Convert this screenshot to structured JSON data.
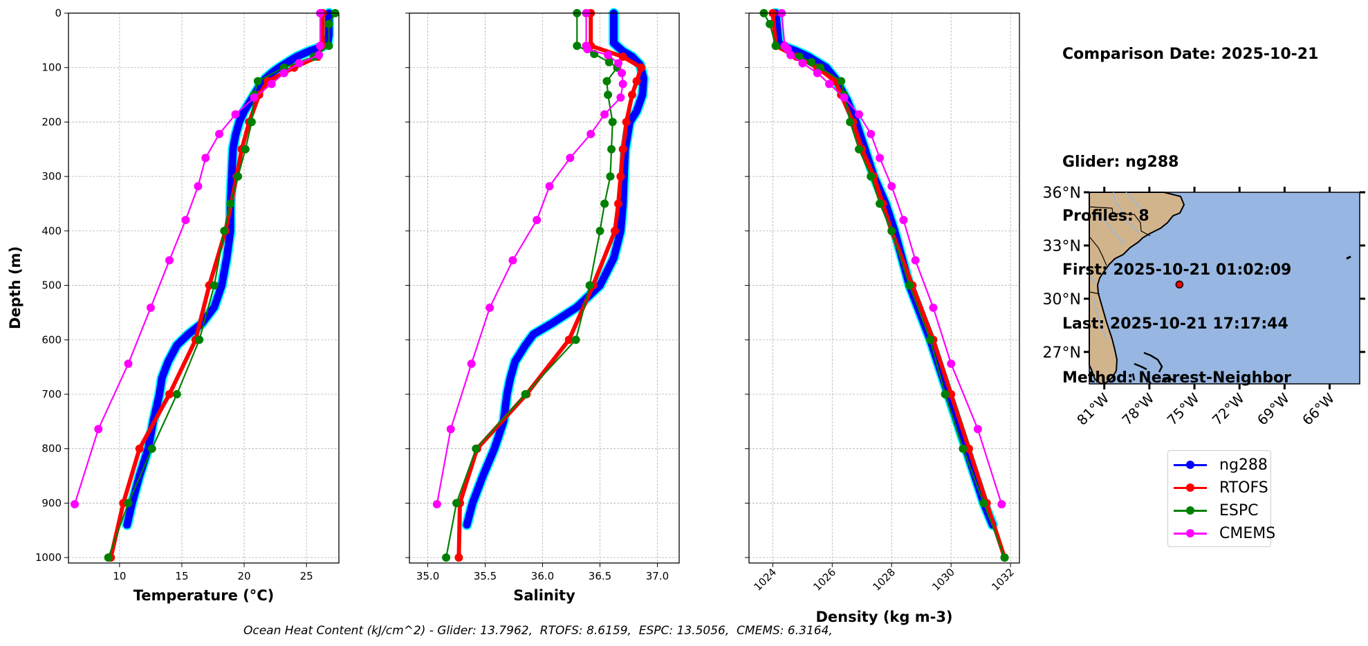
{
  "info": {
    "comparison_date": "Comparison Date: 2025-10-21",
    "glider": "Glider: ng288",
    "profiles": "Profiles: 8",
    "first": "First: 2025-10-21 01:02:09",
    "last": "Last: 2025-10-21 17:17:44",
    "method": "Method: Nearest-Neighbor"
  },
  "footer": "Ocean Heat Content (kJ/cm^2) - Glider: 13.7962,  RTOFS: 8.6159,  ESPC: 13.5056,  CMEMS: 6.3164,",
  "legend": [
    {
      "label": "ng288",
      "color": "#0000ff"
    },
    {
      "label": "RTOFS",
      "color": "#ff0000"
    },
    {
      "label": "ESPC",
      "color": "#008000"
    },
    {
      "label": "CMEMS",
      "color": "#ff00ff"
    }
  ],
  "colors": {
    "glider_halo": "#00ffff",
    "grid": "#b0b0b0",
    "land": "#d2b48c",
    "ocean": "#97b6e1",
    "rivers": "#97b6e1",
    "marker": "#ff0000"
  },
  "chart_data": [
    {
      "type": "line",
      "title": "",
      "xlabel": "Temperature (°C)",
      "ylabel": "Depth (m)",
      "xlim": [
        5.9,
        27.6
      ],
      "ylim": [
        1010,
        0
      ],
      "xticks": [
        10,
        15,
        20,
        25
      ],
      "yticks": [
        0,
        100,
        200,
        300,
        400,
        500,
        600,
        700,
        800,
        900,
        1000
      ],
      "grid": true,
      "series": [
        {
          "name": "ng288",
          "depth": [
            0,
            20,
            40,
            55,
            62,
            70,
            80,
            90,
            100,
            110,
            120,
            135,
            150,
            165,
            180,
            200,
            225,
            250,
            300,
            350,
            400,
            450,
            500,
            540,
            570,
            590,
            610,
            640,
            670,
            700,
            750,
            800,
            850,
            900,
            940
          ],
          "values": [
            26.8,
            26.8,
            26.8,
            26.7,
            26.2,
            25.2,
            24.2,
            23.5,
            22.8,
            22.2,
            21.7,
            21.2,
            20.8,
            20.4,
            20.0,
            19.6,
            19.3,
            19.1,
            19.0,
            18.9,
            18.9,
            18.6,
            18.2,
            17.6,
            16.6,
            15.5,
            14.6,
            13.9,
            13.4,
            13.2,
            12.7,
            12.3,
            11.6,
            11.0,
            10.6
          ]
        },
        {
          "name": "RTOFS",
          "depth": [
            0,
            60,
            80,
            100,
            125,
            150,
            200,
            250,
            300,
            400,
            500,
            600,
            700,
            800,
            900,
            1000
          ],
          "values": [
            26.3,
            26.3,
            25.9,
            24.0,
            21.9,
            21.2,
            20.4,
            19.8,
            19.4,
            18.5,
            17.2,
            16.1,
            14.0,
            11.6,
            10.3,
            9.3
          ]
        },
        {
          "name": "ESPC",
          "depth": [
            0,
            20,
            60,
            80,
            100,
            125,
            150,
            200,
            250,
            300,
            350,
            400,
            500,
            600,
            700,
            800,
            900,
            1000
          ],
          "values": [
            27.3,
            26.8,
            26.8,
            25.6,
            23.2,
            21.1,
            20.8,
            20.6,
            20.1,
            19.5,
            18.9,
            18.4,
            17.6,
            16.4,
            14.6,
            12.6,
            10.7,
            9.1
          ]
        },
        {
          "name": "CMEMS",
          "depth": [
            0,
            60,
            77,
            92,
            110,
            130,
            155,
            186,
            222,
            266,
            318,
            380,
            454,
            541,
            644,
            764,
            902
          ],
          "values": [
            26.1,
            26.1,
            26.0,
            24.4,
            23.2,
            22.2,
            20.8,
            19.3,
            18.0,
            16.9,
            16.3,
            15.3,
            14.0,
            12.5,
            10.7,
            8.3,
            6.4
          ]
        }
      ]
    },
    {
      "type": "line",
      "title": "",
      "xlabel": "Salinity",
      "ylabel": "",
      "xlim": [
        34.84,
        37.19
      ],
      "ylim": [
        1010,
        0
      ],
      "xticks": [
        35.0,
        35.5,
        36.0,
        36.5,
        37.0
      ],
      "yticks": [
        0,
        100,
        200,
        300,
        400,
        500,
        600,
        700,
        800,
        900,
        1000
      ],
      "grid": true,
      "series": [
        {
          "name": "ng288",
          "depth": [
            0,
            55,
            70,
            80,
            95,
            120,
            150,
            180,
            200,
            250,
            300,
            350,
            400,
            450,
            500,
            540,
            570,
            590,
            610,
            640,
            670,
            700,
            750,
            800,
            850,
            900,
            940
          ],
          "values": [
            36.62,
            36.62,
            36.7,
            36.78,
            36.85,
            36.88,
            36.87,
            36.82,
            36.76,
            36.72,
            36.71,
            36.7,
            36.68,
            36.62,
            36.5,
            36.3,
            36.08,
            35.92,
            35.85,
            35.76,
            35.72,
            35.69,
            35.66,
            35.58,
            35.48,
            35.39,
            35.34
          ]
        },
        {
          "name": "RTOFS",
          "depth": [
            0,
            60,
            80,
            100,
            125,
            150,
            200,
            250,
            300,
            350,
            400,
            500,
            600,
            700,
            800,
            900,
            1000
          ],
          "values": [
            36.42,
            36.42,
            36.7,
            36.86,
            36.82,
            36.78,
            36.73,
            36.7,
            36.68,
            36.66,
            36.63,
            36.44,
            36.23,
            35.86,
            35.43,
            35.28,
            35.27
          ]
        },
        {
          "name": "ESPC",
          "depth": [
            0,
            60,
            75,
            90,
            100,
            125,
            150,
            200,
            250,
            300,
            350,
            400,
            500,
            600,
            700,
            800,
            900,
            1000
          ],
          "values": [
            36.3,
            36.3,
            36.45,
            36.58,
            36.65,
            36.56,
            36.57,
            36.61,
            36.6,
            36.59,
            36.54,
            36.5,
            36.41,
            36.29,
            35.85,
            35.42,
            35.25,
            35.16
          ]
        },
        {
          "name": "CMEMS",
          "depth": [
            0,
            60,
            66,
            77,
            92,
            110,
            130,
            155,
            186,
            222,
            266,
            318,
            380,
            454,
            541,
            644,
            764,
            902
          ],
          "values": [
            36.38,
            36.38,
            36.39,
            36.57,
            36.66,
            36.69,
            36.7,
            36.68,
            36.54,
            36.42,
            36.24,
            36.06,
            35.95,
            35.74,
            35.54,
            35.38,
            35.2,
            35.08
          ]
        }
      ]
    },
    {
      "type": "line",
      "title": "",
      "xlabel": "Density (kg m-3)",
      "ylabel": "",
      "xlim": [
        1023.2,
        1032.3
      ],
      "ylim": [
        1010,
        0
      ],
      "xticks": [
        1024,
        1026,
        1028,
        1030,
        1032
      ],
      "yticks": [
        0,
        100,
        200,
        300,
        400,
        500,
        600,
        700,
        800,
        900,
        1000
      ],
      "grid": true,
      "series": [
        {
          "name": "ng288",
          "depth": [
            0,
            55,
            62,
            70,
            80,
            90,
            100,
            120,
            140,
            160,
            200,
            250,
            300,
            350,
            400,
            500,
            600,
            700,
            800,
            900,
            940
          ],
          "values": [
            1024.1,
            1024.2,
            1024.4,
            1024.8,
            1025.2,
            1025.5,
            1025.8,
            1026.1,
            1026.3,
            1026.5,
            1026.8,
            1027.1,
            1027.4,
            1027.8,
            1028.1,
            1028.6,
            1029.3,
            1029.9,
            1030.5,
            1031.1,
            1031.4
          ]
        },
        {
          "name": "RTOFS",
          "depth": [
            0,
            60,
            80,
            100,
            125,
            150,
            200,
            250,
            300,
            350,
            400,
            500,
            600,
            700,
            800,
            900,
            1000
          ],
          "values": [
            1024.0,
            1024.1,
            1024.8,
            1025.5,
            1026.1,
            1026.3,
            1026.7,
            1027.0,
            1027.4,
            1027.7,
            1028.0,
            1028.7,
            1029.4,
            1030.0,
            1030.6,
            1031.2,
            1031.8
          ]
        },
        {
          "name": "ESPC",
          "depth": [
            0,
            20,
            60,
            80,
            90,
            100,
            125,
            150,
            200,
            250,
            300,
            350,
            400,
            500,
            600,
            700,
            800,
            900,
            1000
          ],
          "values": [
            1023.7,
            1023.9,
            1024.1,
            1024.9,
            1025.3,
            1025.6,
            1026.3,
            1026.4,
            1026.6,
            1026.9,
            1027.3,
            1027.6,
            1028.0,
            1028.6,
            1029.3,
            1029.8,
            1030.4,
            1031.1,
            1031.8
          ]
        },
        {
          "name": "CMEMS",
          "depth": [
            0,
            60,
            66,
            77,
            92,
            110,
            130,
            155,
            186,
            222,
            266,
            318,
            380,
            454,
            541,
            644,
            764,
            902
          ],
          "values": [
            1024.3,
            1024.4,
            1024.5,
            1024.6,
            1025.0,
            1025.5,
            1025.9,
            1026.4,
            1026.9,
            1027.3,
            1027.6,
            1028.0,
            1028.4,
            1028.8,
            1029.4,
            1030.0,
            1030.9,
            1031.7
          ]
        }
      ]
    },
    {
      "type": "map",
      "title": "",
      "lon_range": [
        -82.0,
        -64.0
      ],
      "lat_range": [
        25.2,
        36.0
      ],
      "xticks": [
        "81°W",
        "78°W",
        "75°W",
        "72°W",
        "69°W",
        "66°W"
      ],
      "xtick_values": [
        -81,
        -78,
        -75,
        -72,
        -69,
        -66
      ],
      "yticks": [
        "36°N",
        "33°N",
        "30°N",
        "27°N"
      ],
      "ytick_values": [
        36,
        33,
        30,
        27
      ],
      "glider_position": {
        "lon": -76.0,
        "lat": 30.8
      }
    }
  ]
}
